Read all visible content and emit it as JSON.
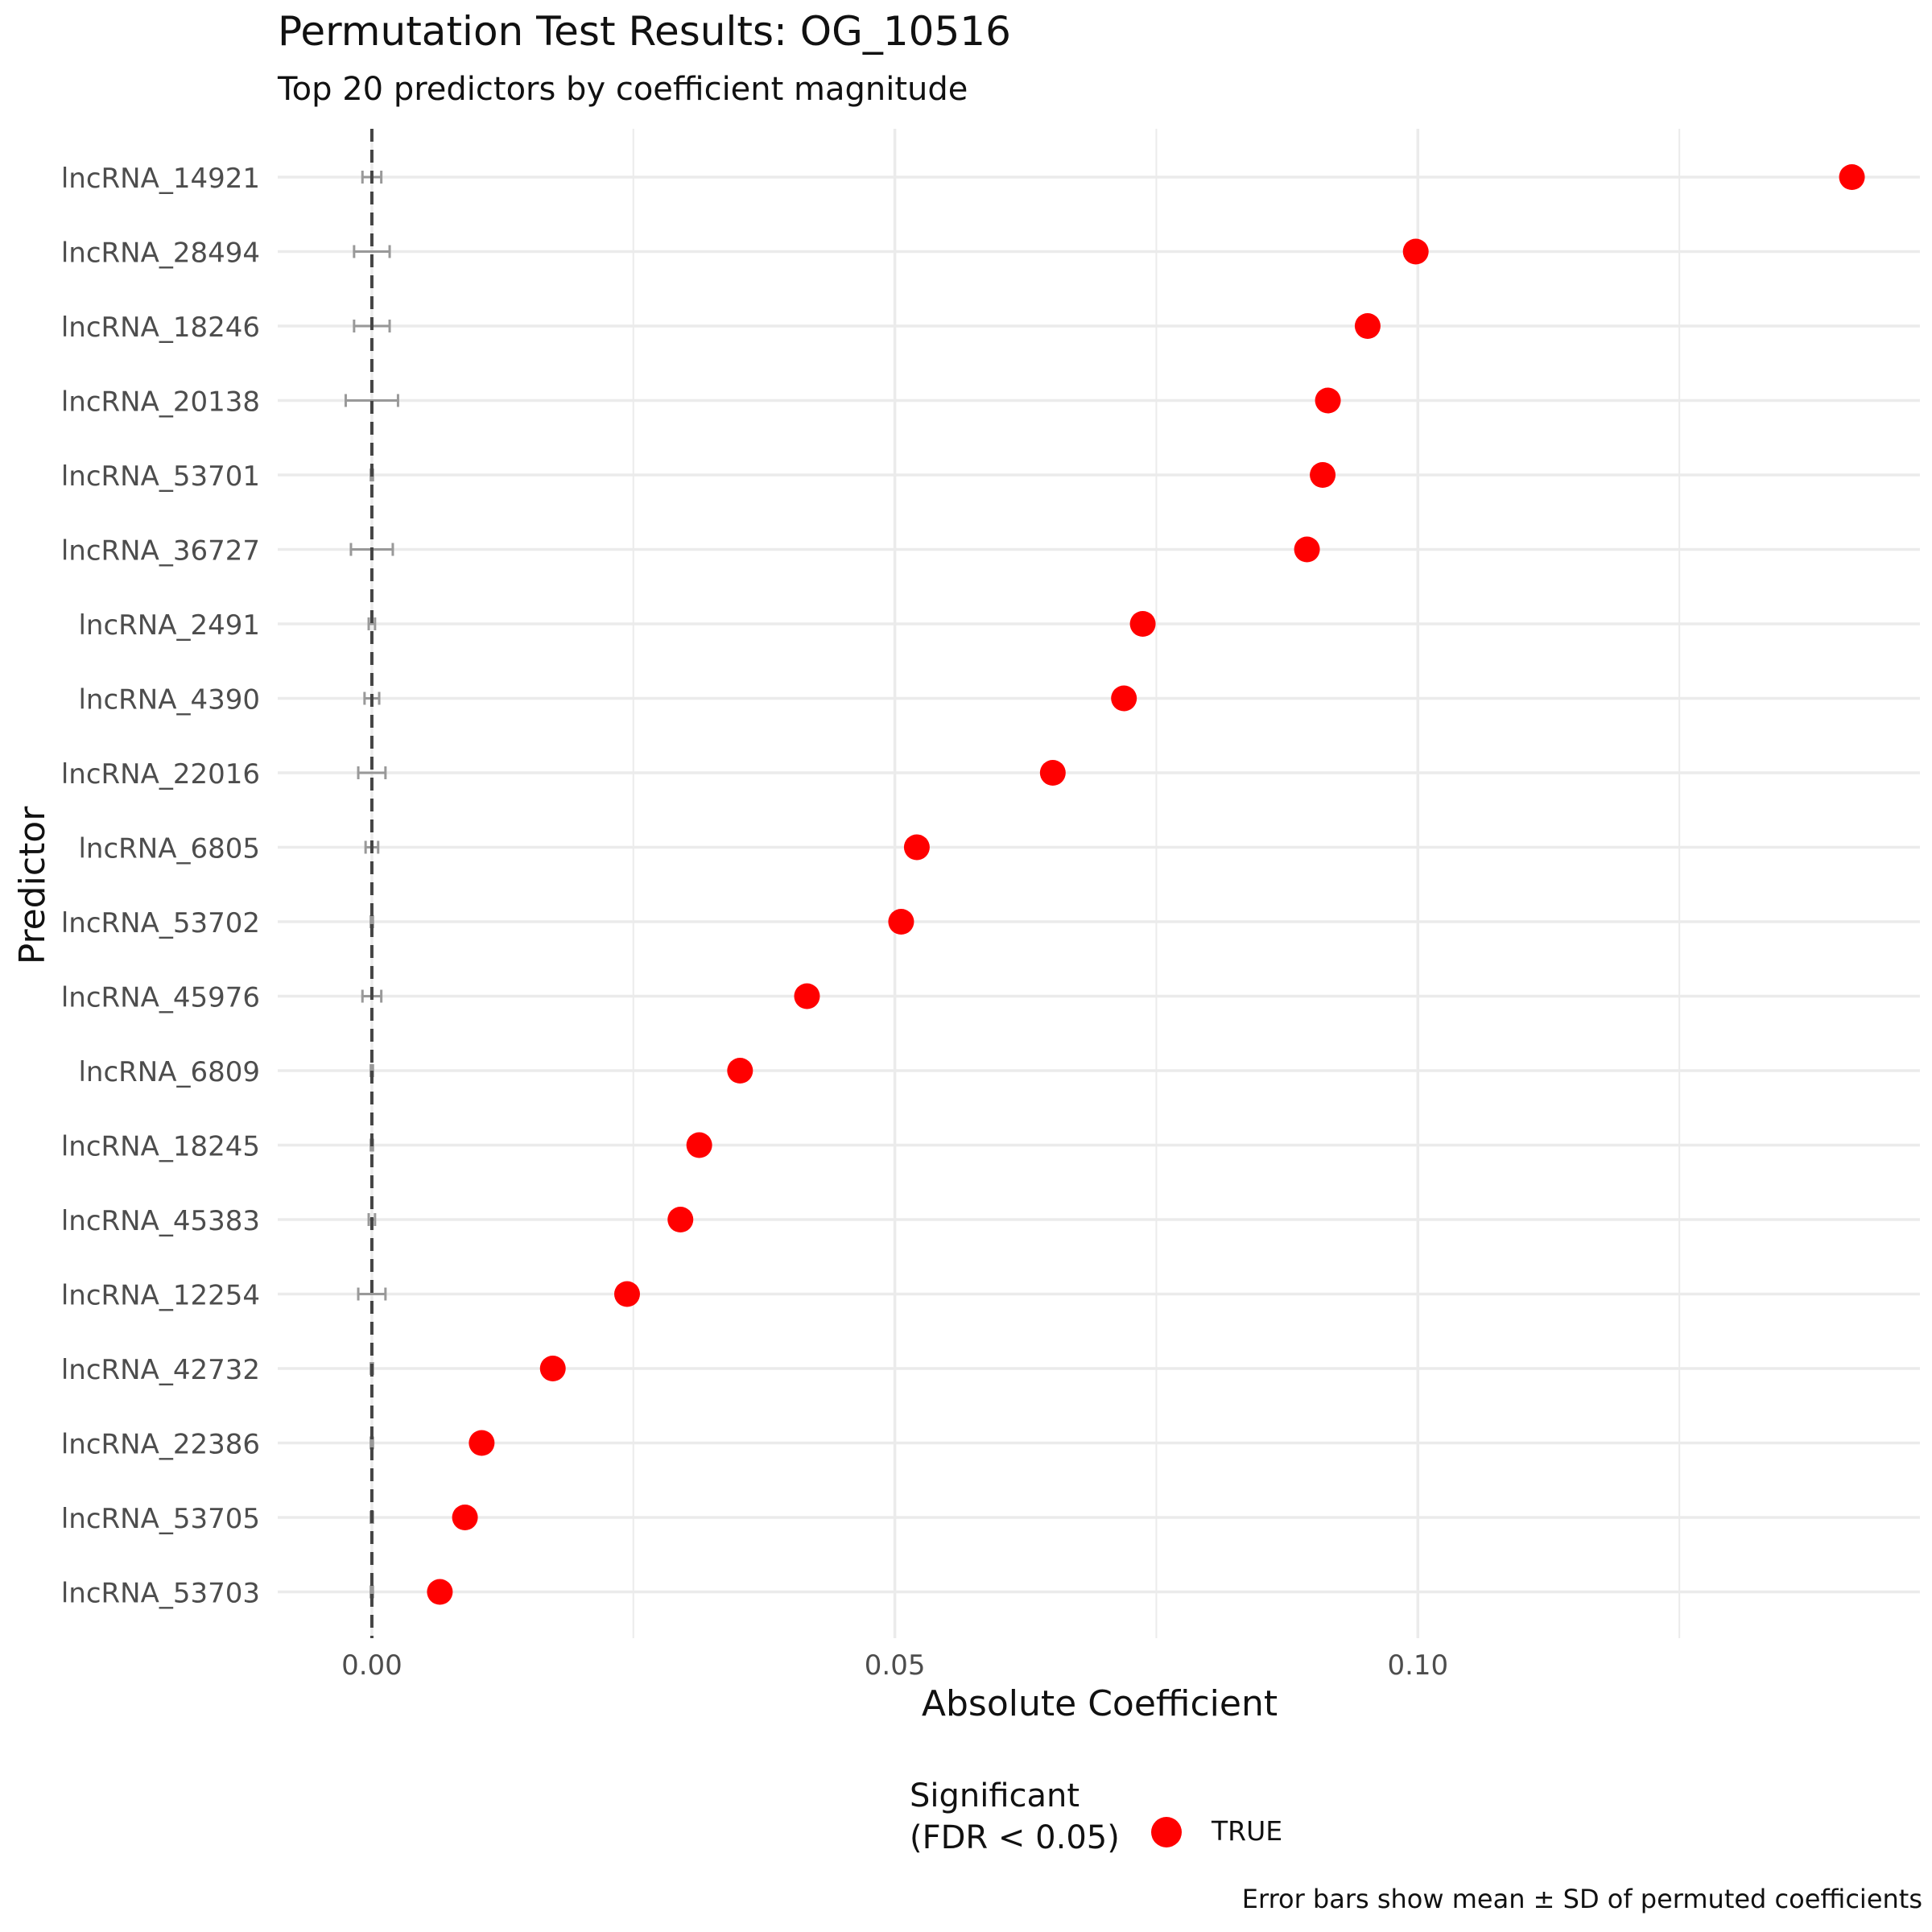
{
  "chart_data": {
    "type": "scatter",
    "title": "Permutation Test Results: OG_10516",
    "subtitle": "Top 20 predictors by coefficient magnitude",
    "xlabel": "Absolute Coefficient",
    "ylabel": "Predictor",
    "xlim": [
      -0.009,
      0.148
    ],
    "x_ticks": [
      0.0,
      0.05,
      0.1
    ],
    "x_tick_labels": [
      "0.00",
      "0.05",
      "0.10"
    ],
    "grid": true,
    "reference_line": {
      "x": 0.0,
      "style": "dashed"
    },
    "legend": {
      "title": "Significant\n(FDR < 0.05)",
      "labels": [
        "TRUE"
      ],
      "position": "bottom"
    },
    "caption": "Error bars show mean ± SD of permuted coefficients",
    "colors": {
      "TRUE": "#ff0000",
      "error_bar": "#999999",
      "grid": "#ebebeb"
    },
    "predictors": [
      {
        "name": "lncRNA_14921",
        "coef": 0.1415,
        "perm_mean": 0.0,
        "perm_sd": 0.0009,
        "significant": true
      },
      {
        "name": "lncRNA_28494",
        "coef": 0.0998,
        "perm_mean": 0.0,
        "perm_sd": 0.0017,
        "significant": true
      },
      {
        "name": "lncRNA_18246",
        "coef": 0.0952,
        "perm_mean": 0.0,
        "perm_sd": 0.0017,
        "significant": true
      },
      {
        "name": "lncRNA_20138",
        "coef": 0.0914,
        "perm_mean": 0.0,
        "perm_sd": 0.0025,
        "significant": true
      },
      {
        "name": "lncRNA_53701",
        "coef": 0.0909,
        "perm_mean": 0.0,
        "perm_sd": 0.0001,
        "significant": true
      },
      {
        "name": "lncRNA_36727",
        "coef": 0.0894,
        "perm_mean": 0.0,
        "perm_sd": 0.002,
        "significant": true
      },
      {
        "name": "lncRNA_2491",
        "coef": 0.0737,
        "perm_mean": 0.0,
        "perm_sd": 0.0003,
        "significant": true
      },
      {
        "name": "lncRNA_4390",
        "coef": 0.0719,
        "perm_mean": 0.0,
        "perm_sd": 0.0007,
        "significant": true
      },
      {
        "name": "lncRNA_22016",
        "coef": 0.0651,
        "perm_mean": 0.0,
        "perm_sd": 0.0013,
        "significant": true
      },
      {
        "name": "lncRNA_6805",
        "coef": 0.0521,
        "perm_mean": 0.0,
        "perm_sd": 0.0006,
        "significant": true
      },
      {
        "name": "lncRNA_53702",
        "coef": 0.0506,
        "perm_mean": 0.0,
        "perm_sd": 0.0001,
        "significant": true
      },
      {
        "name": "lncRNA_45976",
        "coef": 0.0416,
        "perm_mean": 0.0,
        "perm_sd": 0.0009,
        "significant": true
      },
      {
        "name": "lncRNA_6809",
        "coef": 0.0352,
        "perm_mean": 0.0,
        "perm_sd": 0.0001,
        "significant": true
      },
      {
        "name": "lncRNA_18245",
        "coef": 0.0313,
        "perm_mean": 0.0,
        "perm_sd": 0.0001,
        "significant": true
      },
      {
        "name": "lncRNA_45383",
        "coef": 0.0295,
        "perm_mean": 0.0,
        "perm_sd": 0.0003,
        "significant": true
      },
      {
        "name": "lncRNA_12254",
        "coef": 0.0244,
        "perm_mean": 0.0,
        "perm_sd": 0.0013,
        "significant": true
      },
      {
        "name": "lncRNA_42732",
        "coef": 0.0173,
        "perm_mean": 0.0,
        "perm_sd": 0.0001,
        "significant": true
      },
      {
        "name": "lncRNA_22386",
        "coef": 0.0105,
        "perm_mean": 0.0,
        "perm_sd": 0.0001,
        "significant": true
      },
      {
        "name": "lncRNA_53705",
        "coef": 0.0089,
        "perm_mean": 0.0,
        "perm_sd": 0.0001,
        "significant": true
      },
      {
        "name": "lncRNA_53703",
        "coef": 0.0065,
        "perm_mean": 0.0,
        "perm_sd": 0.0001,
        "significant": true
      }
    ]
  }
}
